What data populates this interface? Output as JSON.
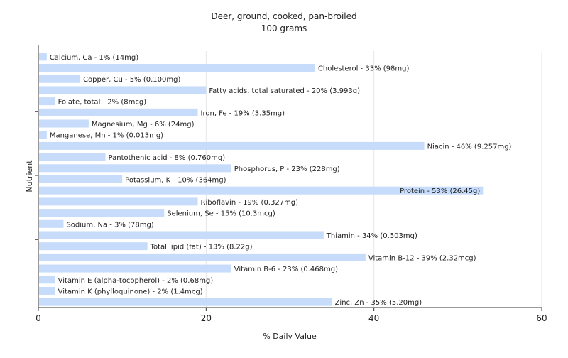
{
  "chart_data": {
    "type": "bar",
    "orientation": "horizontal",
    "title": "Deer, ground, cooked, pan-broiled",
    "subtitle": "100 grams",
    "xlabel": "% Daily Value",
    "ylabel": "Nutrient",
    "xlim": [
      0,
      60
    ],
    "x_ticks": [
      0,
      20,
      40,
      60
    ],
    "grid": true,
    "bar_color": "#c6dcfa",
    "grid_color": "#e6e6e6",
    "categories": [
      "Calcium, Ca",
      "Cholesterol",
      "Copper, Cu",
      "Fatty acids, total saturated",
      "Folate, total",
      "Iron, Fe",
      "Magnesium, Mg",
      "Manganese, Mn",
      "Niacin",
      "Pantothenic acid",
      "Phosphorus, P",
      "Potassium, K",
      "Protein",
      "Riboflavin",
      "Selenium, Se",
      "Sodium, Na",
      "Thiamin",
      "Total lipid (fat)",
      "Vitamin B-12",
      "Vitamin B-6",
      "Vitamin E (alpha-tocopherol)",
      "Vitamin K (phylloquinone)",
      "Zinc, Zn"
    ],
    "values": [
      1,
      33,
      5,
      20,
      2,
      19,
      6,
      1,
      46,
      8,
      23,
      10,
      53,
      19,
      15,
      3,
      34,
      13,
      39,
      23,
      2,
      2,
      35
    ],
    "labels": [
      "Calcium, Ca - 1% (14mg)",
      "Cholesterol - 33% (98mg)",
      "Copper, Cu - 5% (0.100mg)",
      "Fatty acids, total saturated - 20% (3.993g)",
      "Folate, total - 2% (8mcg)",
      "Iron, Fe - 19% (3.35mg)",
      "Magnesium, Mg - 6% (24mg)",
      "Manganese, Mn - 1% (0.013mg)",
      "Niacin - 46% (9.257mg)",
      "Pantothenic acid - 8% (0.760mg)",
      "Phosphorus, P - 23% (228mg)",
      "Potassium, K - 10% (364mg)",
      "Protein - 53% (26.45g)",
      "Riboflavin - 19% (0.327mg)",
      "Selenium, Se - 15% (10.3mcg)",
      "Sodium, Na - 3% (78mg)",
      "Thiamin - 34% (0.503mg)",
      "Total lipid (fat) - 13% (8.22g)",
      "Vitamin B-12 - 39% (2.32mcg)",
      "Vitamin B-6 - 23% (0.468mg)",
      "Vitamin E (alpha-tocopherol) - 2% (0.68mg)",
      "Vitamin K (phylloquinone) - 2% (1.4mcg)",
      "Zinc, Zn - 35% (5.20mg)"
    ]
  }
}
